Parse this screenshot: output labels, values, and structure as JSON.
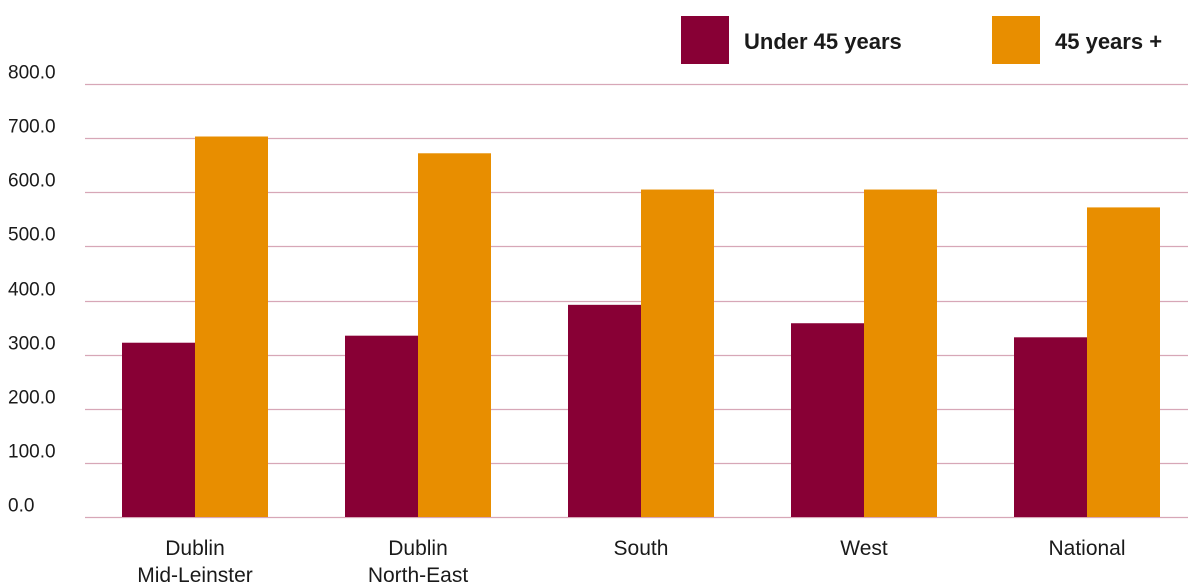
{
  "chart_data": {
    "type": "bar",
    "categories": [
      [
        "Dublin",
        "Mid-Leinster"
      ],
      [
        "Dublin",
        "North-East"
      ],
      [
        "South"
      ],
      [
        "West"
      ],
      [
        "National"
      ]
    ],
    "series": [
      {
        "name": "Under 45 years",
        "color": "#880035",
        "values": [
          322,
          335,
          392,
          358,
          332
        ]
      },
      {
        "name": "45 years +",
        "color": "#E88E00",
        "values": [
          703,
          672,
          605,
          605,
          572
        ]
      }
    ],
    "ylim": [
      0,
      800
    ],
    "yticks": [
      "0.0",
      "100.0",
      "200.0",
      "300.0",
      "400.0",
      "500.0",
      "600.0",
      "700.0",
      "800.0"
    ],
    "grid": true,
    "grid_color": "#D7A7B7",
    "legend_position": "top-right",
    "title": "",
    "xlabel": "",
    "ylabel": ""
  }
}
